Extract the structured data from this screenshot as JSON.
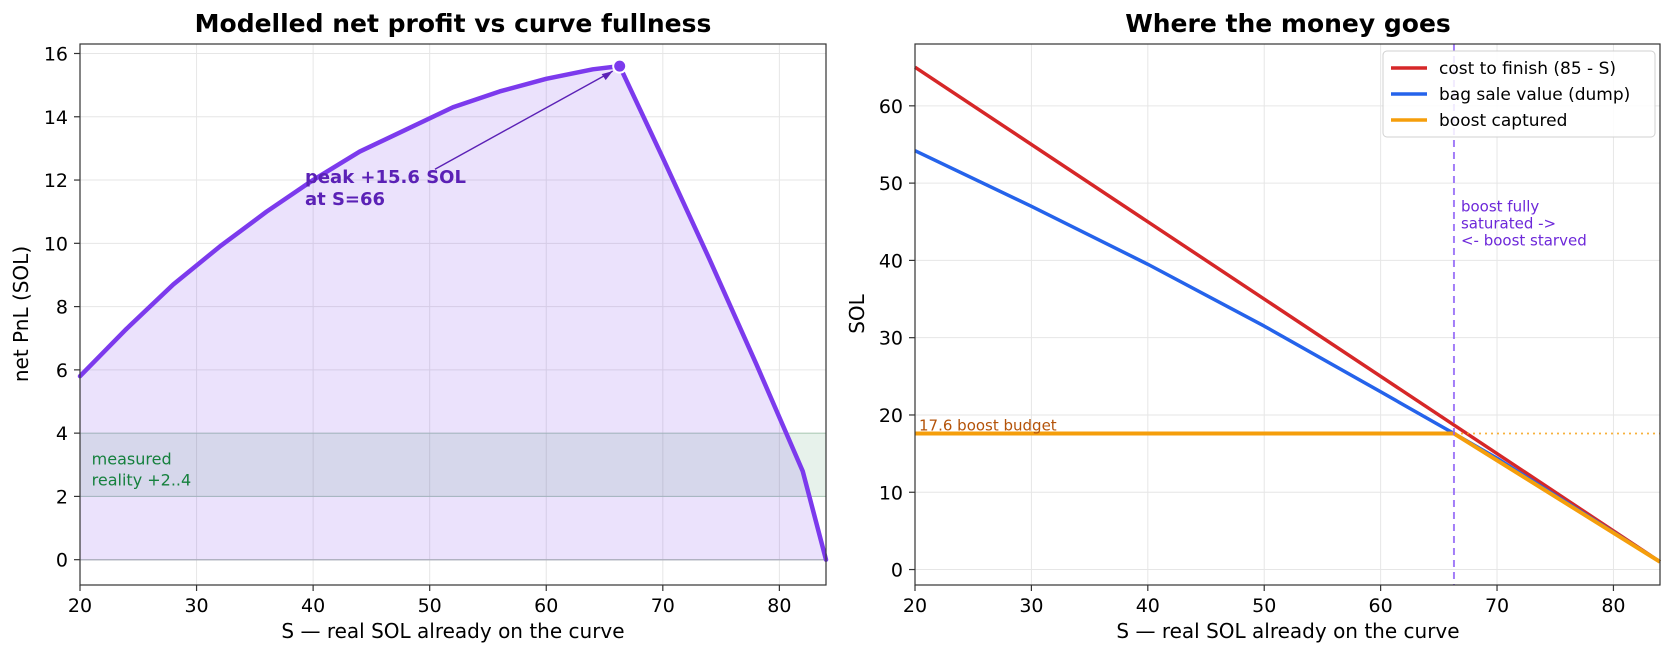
{
  "chart_data": [
    {
      "type": "line",
      "title": "Modelled net profit vs curve fullness",
      "xlabel": "S  —  real SOL already on the curve",
      "ylabel": "net PnL (SOL)",
      "xlim": [
        20,
        84
      ],
      "ylim": [
        -0.8,
        16.3
      ],
      "xticks": [
        20,
        30,
        40,
        50,
        60,
        70,
        80
      ],
      "yticks": [
        0,
        2,
        4,
        6,
        8,
        10,
        12,
        14,
        16
      ],
      "grid": true,
      "series": [
        {
          "color": "#7c3aed",
          "fill": true,
          "x": [
            20,
            24,
            28,
            32,
            36,
            40,
            44,
            48,
            52,
            56,
            60,
            64,
            66.3,
            70,
            74,
            78,
            82,
            84
          ],
          "y": [
            5.8,
            7.3,
            8.7,
            9.9,
            11.0,
            12.0,
            12.9,
            13.6,
            14.3,
            14.8,
            15.2,
            15.5,
            15.6,
            12.7,
            9.5,
            6.2,
            2.8,
            0.0
          ]
        }
      ],
      "peak": {
        "x": 66.3,
        "y": 15.6,
        "label": "peak +15.6 SOL\nat S=66"
      },
      "band": {
        "y0": 2,
        "y1": 4,
        "color": "#15803d",
        "label": "measured\nreality +2..4"
      }
    },
    {
      "type": "line",
      "title": "Where the money goes",
      "xlabel": "S  —  real SOL already on the curve",
      "ylabel": "SOL",
      "xlim": [
        20,
        84
      ],
      "ylim": [
        -2,
        68
      ],
      "xticks": [
        20,
        30,
        40,
        50,
        60,
        70,
        80
      ],
      "yticks": [
        0,
        10,
        20,
        30,
        40,
        50,
        60
      ],
      "grid": true,
      "legend": "top-right",
      "series": [
        {
          "name": "cost to finish (85 - S)",
          "color": "#d62728",
          "x": [
            20,
            84
          ],
          "y": [
            65,
            1
          ]
        },
        {
          "name": "bag sale value (dump)",
          "color": "#2563eb",
          "x": [
            20,
            30,
            40,
            50,
            60,
            66.3,
            70,
            84
          ],
          "y": [
            54.2,
            47.0,
            39.5,
            31.5,
            23.0,
            17.6,
            14.4,
            1
          ]
        },
        {
          "name": "boost captured",
          "color": "#f59e0b",
          "x": [
            20,
            66.3,
            84
          ],
          "y": [
            17.6,
            17.6,
            1
          ]
        }
      ],
      "boost_budget": {
        "y": 17.6,
        "label": "17.6 boost budget"
      },
      "saturation": {
        "x": 66.3,
        "label": "boost fully\nsaturated ->\n<- boost starved"
      }
    }
  ]
}
